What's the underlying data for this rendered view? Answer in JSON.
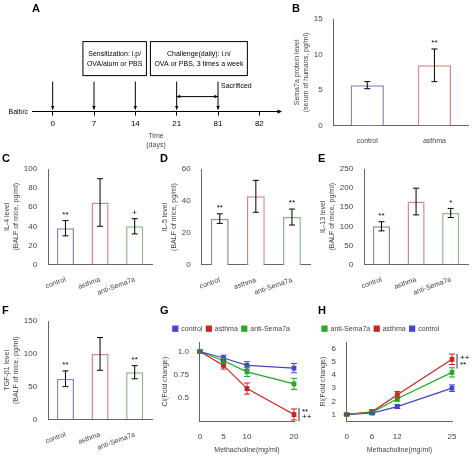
{
  "chart_data": [
    {
      "type": "timeline",
      "title": "A",
      "categories": [
        "0",
        "7",
        "14",
        "21",
        "81",
        "82"
      ],
      "arrows": [
        "0",
        "7",
        "14",
        "21",
        "81"
      ],
      "periods": [
        {
          "from": "21",
          "to": "81"
        }
      ],
      "annotations": [
        {
          "text": [
            "Sensitization: i.p/",
            "OVA/alum or PBS"
          ],
          "from": "0",
          "to": "21"
        },
        {
          "text": [
            "Challenge(daily): i.n/",
            "OVA or PBS, 3 times a week"
          ],
          "from": "21",
          "to": "81"
        },
        {
          "text": [
            "Sacrificed"
          ],
          "at": "81"
        }
      ],
      "xlabel": "Time\n(days)",
      "ylabel": "Balb/c"
    },
    {
      "type": "bar",
      "title": "B",
      "categories": [
        "control",
        "asthma"
      ],
      "values": [
        5.7,
        8.5
      ],
      "errors": [
        0.5,
        2.3
      ],
      "colors": [
        "#8888bb",
        "#dd8888"
      ],
      "ylabel": "Sema7a protein level\n(serum of humans, pg/ml)",
      "ylim": [
        0,
        15
      ],
      "yticks": [
        0,
        5,
        10,
        15
      ],
      "grid": false,
      "annotations": [
        {
          "category": "asthma",
          "text": "**"
        }
      ]
    },
    {
      "type": "bar",
      "title": "C",
      "categories": [
        "control",
        "asthma",
        "anti-Sema7a"
      ],
      "values": [
        38,
        65,
        40
      ],
      "errors": [
        8,
        25,
        8
      ],
      "colors": [
        "#8888bb",
        "#dd8888",
        "#88bb88"
      ],
      "ylabel": "IL-4 level\n(BALF of mice, pg/ml)",
      "ylim": [
        0,
        100
      ],
      "yticks": [
        0,
        20,
        40,
        60,
        80,
        100
      ],
      "grid": false,
      "annotations": [
        {
          "category": "control",
          "text": "**"
        },
        {
          "category": "anti-Sema7a",
          "text": "+"
        }
      ]
    },
    {
      "type": "bar",
      "title": "D",
      "categories": [
        "control",
        "asthma",
        "anti-Sema7a"
      ],
      "values": [
        29,
        43,
        30
      ],
      "errors": [
        3,
        10,
        5
      ],
      "colors": [
        "#8888bb",
        "#dd8888",
        "#88bb88"
      ],
      "ylabel": "IL-5 level\n(BALF of mice, pg/ml)",
      "ylim": [
        0,
        60
      ],
      "yticks": [
        0,
        20,
        40,
        60
      ],
      "grid": false,
      "annotations": [
        {
          "category": "control",
          "text": "**"
        },
        {
          "category": "anti-Sema7a",
          "text": "**"
        }
      ]
    },
    {
      "type": "bar",
      "title": "E",
      "categories": [
        "control",
        "asthma",
        "anti-Sema7a"
      ],
      "values": [
        100,
        165,
        135
      ],
      "errors": [
        12,
        35,
        12
      ],
      "colors": [
        "#8888bb",
        "#dd8888",
        "#88bb88"
      ],
      "ylabel": "IL-13 level\n(BALF of mice, pg/ml)",
      "ylim": [
        0,
        250
      ],
      "yticks": [
        0,
        50,
        100,
        150,
        200,
        250
      ],
      "grid": false,
      "annotations": [
        {
          "category": "control",
          "text": "**"
        },
        {
          "category": "anti-Sema7a",
          "text": "*"
        }
      ]
    },
    {
      "type": "bar",
      "title": "F",
      "categories": [
        "control",
        "asthma",
        "anti-Sema7a"
      ],
      "values": [
        62,
        100,
        72
      ],
      "errors": [
        12,
        25,
        10
      ],
      "colors": [
        "#8888bb",
        "#dd8888",
        "#88bb88"
      ],
      "ylabel": "TGF-β1 level\n(BALF of mice, pg/ml)",
      "ylim": [
        0,
        150
      ],
      "yticks": [
        0,
        50,
        100,
        150
      ],
      "grid": false,
      "annotations": [
        {
          "category": "control",
          "text": "**"
        },
        {
          "category": "anti-Sema7a",
          "text": "**"
        }
      ]
    },
    {
      "type": "line",
      "title": "G",
      "x": [
        0,
        5,
        10,
        20
      ],
      "series": [
        {
          "name": "control",
          "color": "#4444cc",
          "marker": "square",
          "values": [
            1.0,
            0.93,
            0.85,
            0.82
          ],
          "errors": [
            0.02,
            0.03,
            0.04,
            0.05
          ]
        },
        {
          "name": "asthma",
          "color": "#cc2222",
          "marker": "square",
          "values": [
            1.0,
            0.85,
            0.6,
            0.32
          ],
          "errors": [
            0.02,
            0.04,
            0.06,
            0.06
          ]
        },
        {
          "name": "anti-Sema7a",
          "color": "#22aa22",
          "marker": "square",
          "values": [
            1.0,
            0.9,
            0.78,
            0.65
          ],
          "errors": [
            0.02,
            0.03,
            0.05,
            0.06
          ]
        }
      ],
      "xlabel": "Methacholine(mg/ml)",
      "ylabel": "Ci(Fold change)",
      "xlim": [
        0,
        20
      ],
      "xticks": [
        0,
        5,
        10,
        20
      ],
      "ylim": [
        0.25,
        1.1
      ],
      "yticks": [
        0.5,
        0.75,
        {
          "value": 1.0,
          "label": "1.0"
        }
      ],
      "grid": false,
      "legend": "top-right",
      "annotations": [
        {
          "x": 20,
          "y": 0.35,
          "text": "**"
        },
        {
          "x": 20,
          "y": 0.29,
          "text": "++"
        }
      ]
    },
    {
      "type": "line",
      "title": "H",
      "x": [
        0,
        6,
        12,
        25
      ],
      "series": [
        {
          "name": "anti-Sema7a",
          "color": "#22aa22",
          "marker": "square",
          "values": [
            1.0,
            1.15,
            2.2,
            4.2
          ],
          "errors": [
            0.05,
            0.12,
            0.2,
            0.35
          ]
        },
        {
          "name": "asthma",
          "color": "#cc2222",
          "marker": "square",
          "values": [
            1.0,
            1.2,
            2.5,
            5.2
          ],
          "errors": [
            0.05,
            0.15,
            0.25,
            0.4
          ]
        },
        {
          "name": "control",
          "color": "#4444cc",
          "marker": "square",
          "values": [
            1.0,
            1.1,
            1.6,
            3.0
          ],
          "errors": [
            0.05,
            0.08,
            0.15,
            0.25
          ]
        }
      ],
      "xlabel": "Methacholine(mg/ml)",
      "ylabel": "Ri(Fold change)",
      "xlim": [
        0,
        25
      ],
      "xticks": [
        0,
        6,
        12,
        25
      ],
      "ylim": [
        0.5,
        6.5
      ],
      "yticks": [
        1,
        2,
        3,
        4,
        5,
        6
      ],
      "grid": false,
      "legend": "top-left",
      "annotations": [
        {
          "x": 25,
          "y": 5.3,
          "text": "++"
        },
        {
          "x": 25,
          "y": 4.8,
          "text": "**"
        }
      ]
    }
  ]
}
